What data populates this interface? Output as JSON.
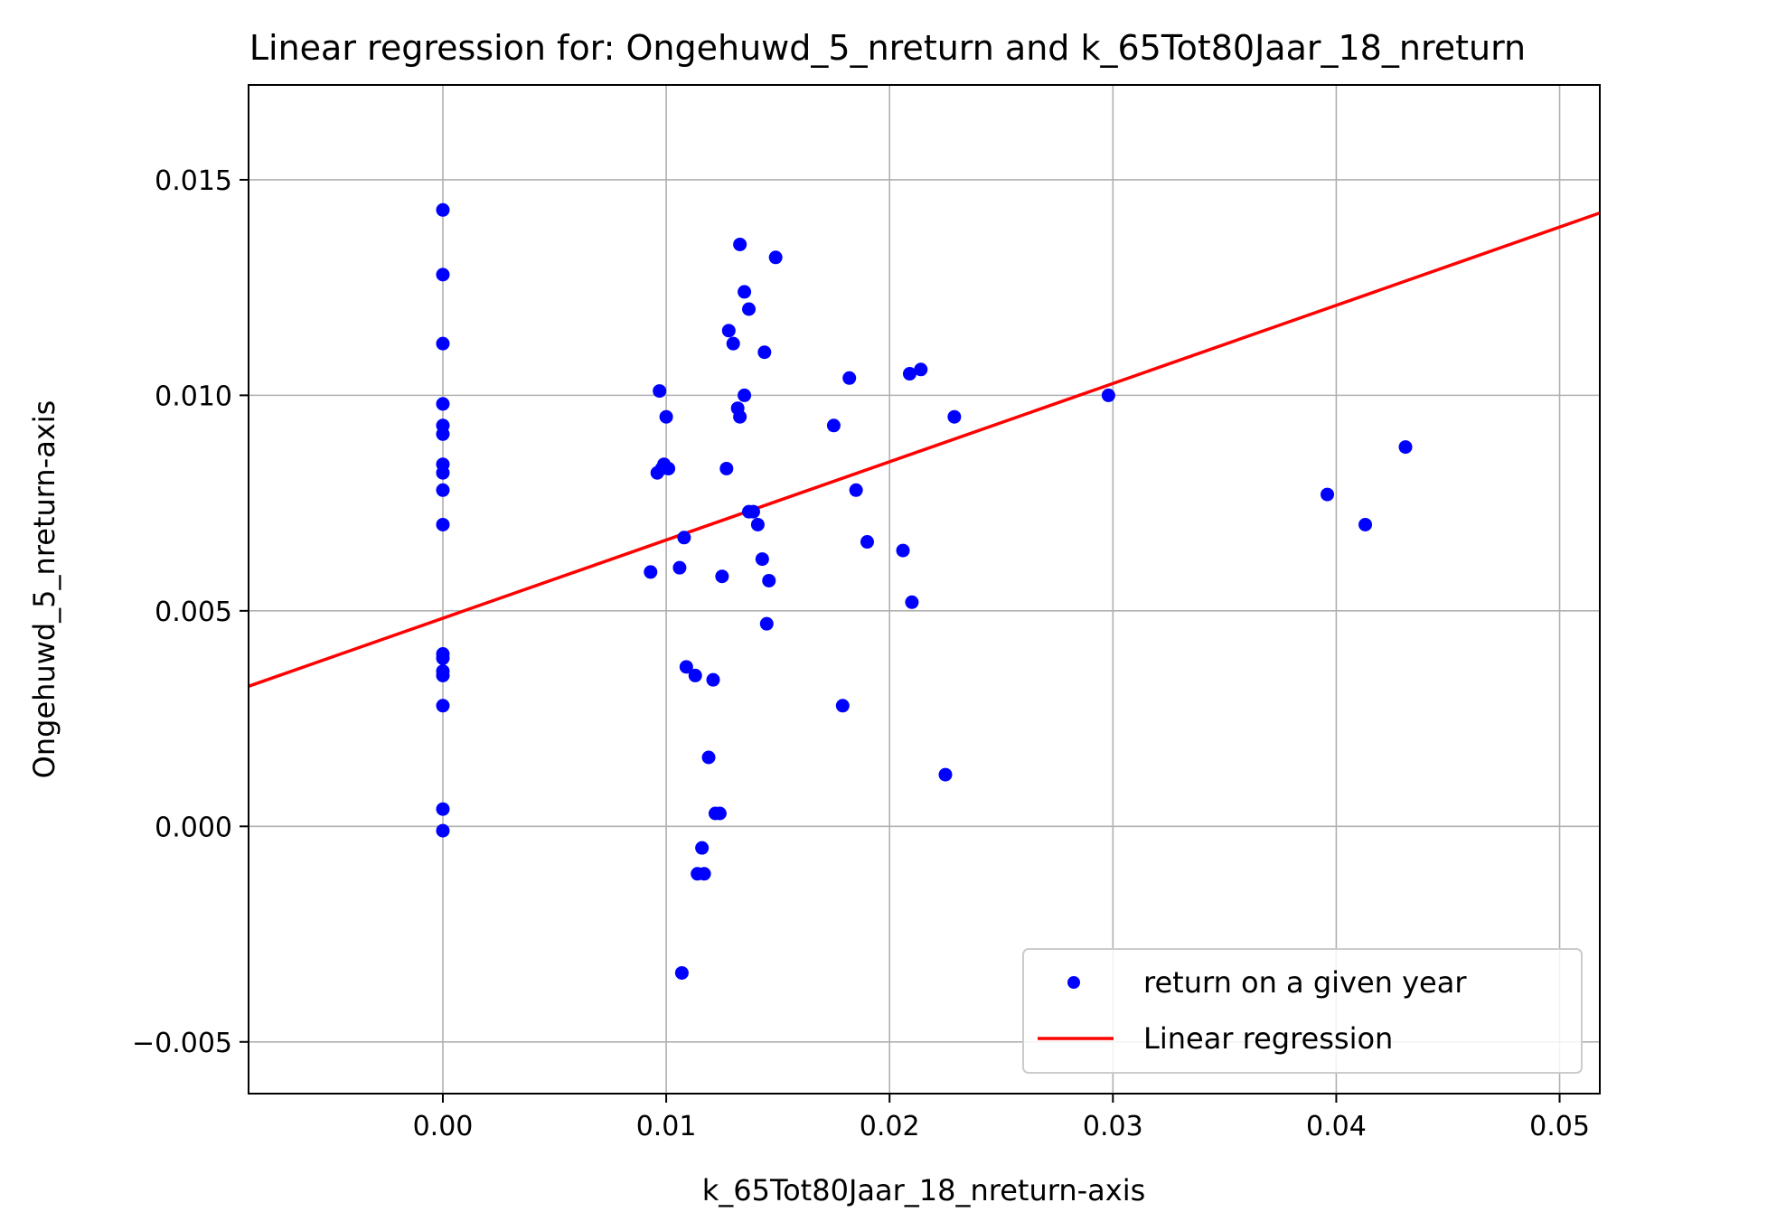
{
  "chart_data": {
    "type": "scatter",
    "title": "Linear regression for: Ongehuwd_5_nreturn and k_65Tot80Jaar_18_nreturn",
    "xlabel": "k_65Tot80Jaar_18_nreturn-axis",
    "ylabel": "Ongehuwd_5_nreturn-axis",
    "xlim": [
      -0.0087,
      0.0518
    ],
    "ylim": [
      -0.0062,
      0.0172
    ],
    "xticks": [
      0.0,
      0.01,
      0.02,
      0.03,
      0.04,
      0.05
    ],
    "xtick_labels": [
      "0.00",
      "0.01",
      "0.02",
      "0.03",
      "0.04",
      "0.05"
    ],
    "yticks": [
      -0.005,
      0.0,
      0.005,
      0.01,
      0.015
    ],
    "ytick_labels": [
      "−0.005",
      "0.000",
      "0.005",
      "0.010",
      "0.015"
    ],
    "grid": true,
    "legend_position": "lower-right",
    "series": [
      {
        "name": "return on a given year",
        "kind": "scatter",
        "color": "#0000ff",
        "points": [
          [
            0.0,
            0.0143
          ],
          [
            0.0,
            0.0128
          ],
          [
            0.0,
            0.0112
          ],
          [
            0.0,
            0.0098
          ],
          [
            0.0,
            0.0093
          ],
          [
            0.0,
            0.0091
          ],
          [
            0.0,
            0.0084
          ],
          [
            0.0,
            0.0082
          ],
          [
            0.0,
            0.0078
          ],
          [
            0.0,
            0.007
          ],
          [
            0.0,
            0.004
          ],
          [
            0.0,
            0.0039
          ],
          [
            0.0,
            0.0036
          ],
          [
            0.0,
            0.0035
          ],
          [
            0.0,
            0.0028
          ],
          [
            0.0,
            0.0004
          ],
          [
            0.0,
            -0.0001
          ],
          [
            0.0093,
            0.0059
          ],
          [
            0.0096,
            0.0082
          ],
          [
            0.0097,
            0.0101
          ],
          [
            0.0098,
            0.0083
          ],
          [
            0.0099,
            0.0084
          ],
          [
            0.01,
            0.0095
          ],
          [
            0.0101,
            0.0083
          ],
          [
            0.0106,
            0.006
          ],
          [
            0.0107,
            -0.0034
          ],
          [
            0.0108,
            0.0067
          ],
          [
            0.0109,
            0.0037
          ],
          [
            0.0113,
            0.0035
          ],
          [
            0.0114,
            -0.0011
          ],
          [
            0.0116,
            -0.0005
          ],
          [
            0.0117,
            -0.0011
          ],
          [
            0.0119,
            0.0016
          ],
          [
            0.0121,
            0.0034
          ],
          [
            0.0122,
            0.0003
          ],
          [
            0.0124,
            0.0003
          ],
          [
            0.0125,
            0.0058
          ],
          [
            0.0127,
            0.0083
          ],
          [
            0.0128,
            0.0115
          ],
          [
            0.013,
            0.0112
          ],
          [
            0.0132,
            0.0097
          ],
          [
            0.0133,
            0.0095
          ],
          [
            0.0133,
            0.0135
          ],
          [
            0.0135,
            0.0124
          ],
          [
            0.0135,
            0.01
          ],
          [
            0.0137,
            0.012
          ],
          [
            0.0137,
            0.0073
          ],
          [
            0.0139,
            0.0073
          ],
          [
            0.0141,
            0.007
          ],
          [
            0.0143,
            0.0062
          ],
          [
            0.0144,
            0.011
          ],
          [
            0.0145,
            0.0047
          ],
          [
            0.0146,
            0.0057
          ],
          [
            0.0149,
            0.0132
          ],
          [
            0.0175,
            0.0093
          ],
          [
            0.0179,
            0.0028
          ],
          [
            0.0182,
            0.0104
          ],
          [
            0.0185,
            0.0078
          ],
          [
            0.019,
            0.0066
          ],
          [
            0.0206,
            0.0064
          ],
          [
            0.0209,
            0.0105
          ],
          [
            0.021,
            0.0052
          ],
          [
            0.0214,
            0.0106
          ],
          [
            0.0225,
            0.0012
          ],
          [
            0.0229,
            0.0095
          ],
          [
            0.0298,
            0.01
          ],
          [
            0.0396,
            0.0077
          ],
          [
            0.0413,
            0.007
          ],
          [
            0.0431,
            0.0088
          ]
        ]
      },
      {
        "name": "Linear regression",
        "kind": "line",
        "color": "#ff0000",
        "x": [
          -0.0087,
          0.0518
        ],
        "y": [
          0.00325,
          0.01423
        ]
      }
    ]
  }
}
